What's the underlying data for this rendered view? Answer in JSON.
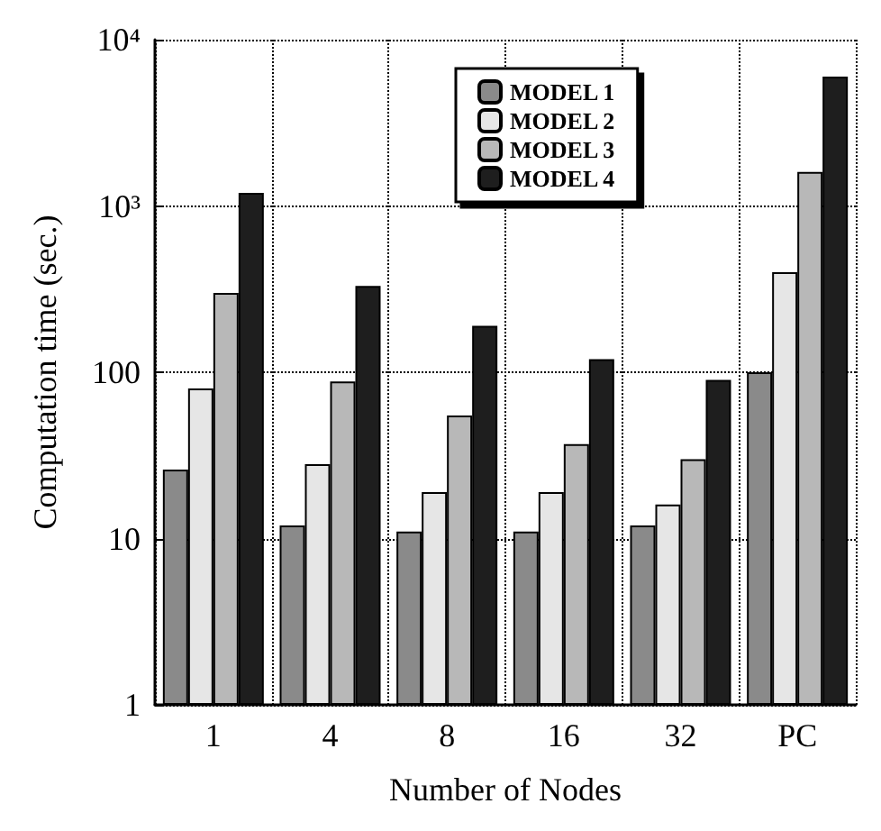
{
  "chart_data": {
    "type": "bar",
    "xlabel": "Number of Nodes",
    "ylabel": "Computation time (sec.)",
    "categories": [
      "1",
      "4",
      "8",
      "16",
      "32",
      "PC"
    ],
    "series": [
      {
        "name": "MODEL 1",
        "color": "#8a8a8a",
        "values": [
          26,
          12,
          11,
          11,
          12,
          100
        ]
      },
      {
        "name": "MODEL 2",
        "color": "#e6e6e6",
        "values": [
          80,
          28,
          19,
          19,
          16,
          400
        ]
      },
      {
        "name": "MODEL 3",
        "color": "#b8b8b8",
        "values": [
          300,
          88,
          55,
          37,
          30,
          1600
        ]
      },
      {
        "name": "MODEL 4",
        "color": "#1e1e1e",
        "values": [
          1200,
          330,
          190,
          120,
          90,
          6000
        ]
      }
    ],
    "log": "y",
    "ylim": [
      1,
      10000
    ],
    "yticks": [
      1,
      10,
      100,
      {
        "value": 1000,
        "label": "10³"
      },
      {
        "value": 10000,
        "label": "10⁴"
      }
    ],
    "grid": true,
    "legend": "top"
  }
}
